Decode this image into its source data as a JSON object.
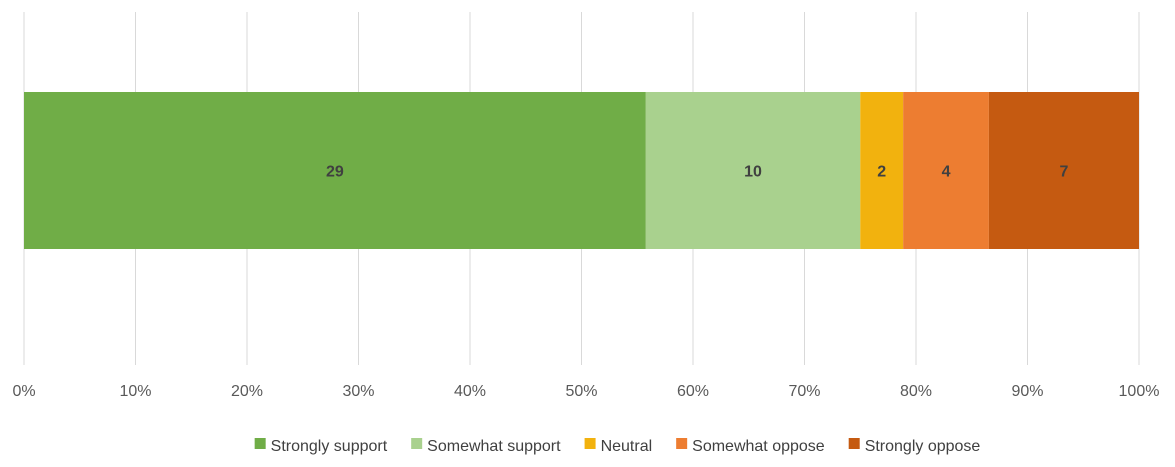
{
  "chart_data": {
    "type": "bar",
    "orientation": "horizontal",
    "stacking": "percent",
    "categories": [
      ""
    ],
    "series": [
      {
        "name": "Strongly support",
        "values": [
          29
        ],
        "color": "#70ad47"
      },
      {
        "name": "Somewhat support",
        "values": [
          10
        ],
        "color": "#a9d18e"
      },
      {
        "name": "Neutral",
        "values": [
          2
        ],
        "color": "#f2b20e"
      },
      {
        "name": "Somewhat oppose",
        "values": [
          4
        ],
        "color": "#ed7d31"
      },
      {
        "name": "Strongly oppose",
        "values": [
          7
        ],
        "color": "#c55a11"
      }
    ],
    "data_labels": [
      "29",
      "10",
      "2",
      "4",
      "7"
    ],
    "x_ticks": [
      "0%",
      "10%",
      "20%",
      "30%",
      "40%",
      "50%",
      "60%",
      "70%",
      "80%",
      "90%",
      "100%"
    ],
    "xlim": [
      0,
      100
    ],
    "grid": "vertical",
    "legend": "bottom",
    "title": "",
    "xlabel": "",
    "ylabel": ""
  }
}
